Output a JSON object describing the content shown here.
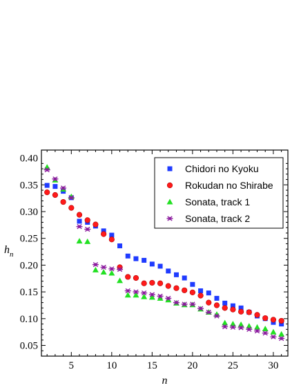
{
  "chart_data": {
    "type": "scatter",
    "xlabel": "n",
    "ylabel": "h",
    "ylabel_sub": "n",
    "xlim": [
      1.3,
      31.8
    ],
    "ylim": [
      0.03,
      0.415
    ],
    "xticks": [
      5,
      10,
      15,
      20,
      25,
      30
    ],
    "yticks": [
      0.05,
      0.1,
      0.15,
      0.2,
      0.25,
      0.3,
      0.35,
      0.4
    ],
    "legend_position": "top-right",
    "grid": false,
    "series": [
      {
        "name": "Chidori no Kyoku",
        "marker": "square",
        "color": "#1f3bff",
        "x": [
          2,
          3,
          4,
          5,
          6,
          7,
          8,
          9,
          10,
          11,
          12,
          13,
          14,
          15,
          16,
          17,
          18,
          19,
          20,
          21,
          22,
          23,
          24,
          25,
          26,
          27,
          28,
          29,
          30,
          31
        ],
        "y": [
          0.349,
          0.347,
          0.338,
          0.326,
          0.282,
          0.28,
          0.273,
          0.264,
          0.256,
          0.236,
          0.217,
          0.212,
          0.209,
          0.202,
          0.198,
          0.189,
          0.182,
          0.176,
          0.164,
          0.152,
          0.148,
          0.138,
          0.129,
          0.124,
          0.12,
          0.112,
          0.105,
          0.1,
          0.093,
          0.09
        ]
      },
      {
        "name": "Rokudan no Shirabe",
        "marker": "circle",
        "color": "#ff1a1a",
        "x": [
          2,
          3,
          4,
          5,
          6,
          7,
          8,
          9,
          10,
          11,
          12,
          13,
          14,
          15,
          16,
          17,
          18,
          19,
          20,
          21,
          22,
          23,
          24,
          25,
          26,
          27,
          28,
          29,
          30,
          31
        ],
        "y": [
          0.336,
          0.331,
          0.318,
          0.307,
          0.294,
          0.284,
          0.276,
          0.258,
          0.248,
          0.196,
          0.178,
          0.176,
          0.166,
          0.167,
          0.166,
          0.161,
          0.157,
          0.153,
          0.149,
          0.143,
          0.13,
          0.125,
          0.12,
          0.117,
          0.113,
          0.112,
          0.107,
          0.101,
          0.098,
          0.096
        ]
      },
      {
        "name": "Sonata, track 1",
        "marker": "triangle",
        "color": "#22e022",
        "x": [
          2,
          3,
          4,
          5,
          6,
          7,
          8,
          9,
          10,
          11,
          12,
          13,
          14,
          15,
          16,
          17,
          18,
          19,
          20,
          21,
          22,
          23,
          24,
          25,
          26,
          27,
          28,
          29,
          30,
          31
        ],
        "y": [
          0.383,
          0.359,
          0.342,
          0.328,
          0.245,
          0.244,
          0.191,
          0.187,
          0.185,
          0.171,
          0.144,
          0.144,
          0.141,
          0.14,
          0.138,
          0.135,
          0.129,
          0.126,
          0.126,
          0.118,
          0.112,
          0.108,
          0.092,
          0.09,
          0.089,
          0.086,
          0.084,
          0.081,
          0.075,
          0.071
        ]
      },
      {
        "name": "Sonata, track 2",
        "marker": "asterisk",
        "color": "#8b1a9e",
        "x": [
          2,
          3,
          4,
          5,
          6,
          7,
          8,
          9,
          10,
          11,
          12,
          13,
          14,
          15,
          16,
          17,
          18,
          19,
          20,
          21,
          22,
          23,
          24,
          25,
          26,
          27,
          28,
          29,
          30,
          31
        ],
        "y": [
          0.378,
          0.361,
          0.344,
          0.326,
          0.272,
          0.267,
          0.201,
          0.196,
          0.193,
          0.192,
          0.152,
          0.15,
          0.148,
          0.145,
          0.142,
          0.138,
          0.13,
          0.127,
          0.127,
          0.119,
          0.112,
          0.105,
          0.085,
          0.084,
          0.083,
          0.08,
          0.077,
          0.073,
          0.066,
          0.063
        ]
      }
    ]
  }
}
